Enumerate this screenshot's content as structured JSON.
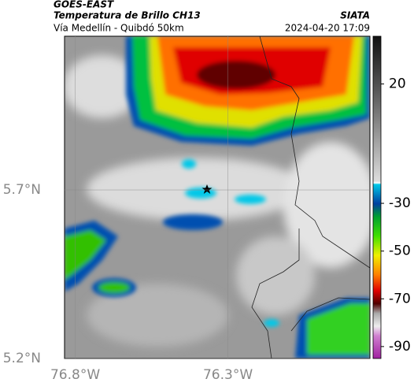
{
  "header": {
    "product": "GOES-EAST",
    "title": "Temperatura de Brillo CH13",
    "source": "SIATA",
    "subtitle": "Vía Medellín - Quibdó 50km",
    "timestamp": "2024-04-20 17:09"
  },
  "map": {
    "xlim": [
      -76.835,
      -75.835
    ],
    "ylim": [
      5.2,
      6.156
    ],
    "xticks": [
      {
        "value": -76.8,
        "label": "76.8°W"
      },
      {
        "value": -76.3,
        "label": "76.3°W"
      }
    ],
    "yticks": [
      {
        "value": 5.2,
        "label": "5.2°N"
      },
      {
        "value": 5.7,
        "label": "5.7°N"
      }
    ]
  },
  "colorbar": {
    "lim": [
      40,
      -95
    ],
    "ticks": [
      20,
      -30,
      -50,
      -70,
      -90
    ]
  }
}
